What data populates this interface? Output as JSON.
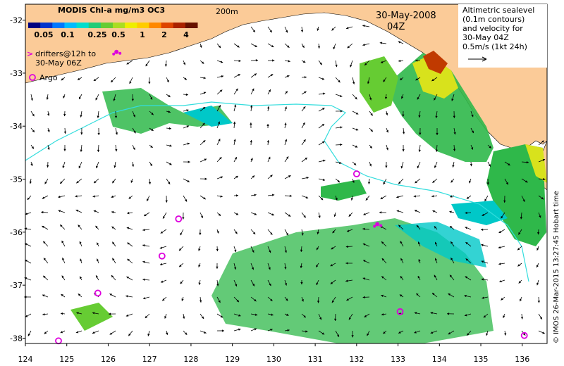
{
  "colorbar": {
    "title": "MODIS Chl-a mg/m3 OC3",
    "labels": [
      "0.05",
      "0.1",
      "0.25",
      "0.5",
      "1",
      "2",
      "4"
    ],
    "colors": [
      "#000080",
      "#0033cc",
      "#0077ff",
      "#00bbff",
      "#00ddcc",
      "#22cc77",
      "#66cc33",
      "#aadd22",
      "#eeee00",
      "#ffcc00",
      "#ff8800",
      "#dd4400",
      "#aa2200",
      "#661100"
    ]
  },
  "isobath_label": "200m",
  "date": "30-May-2008",
  "time": "04Z",
  "info_lines": [
    "Altimetric sealevel",
    "(0.1m contours)",
    "and velocity for",
    "30-May 04Z",
    "0.5m/s (1kt 24h)"
  ],
  "drifters_legend": [
    "drifters@12h to",
    "30-May 06Z"
  ],
  "drifters_symbol": ">",
  "argo_legend": "Argo",
  "credit": "© IMOS 26-Mar-2015 13:27:45 Hobart time",
  "x_ticks": [
    "124",
    "125",
    "126",
    "127",
    "128",
    "129",
    "130",
    "131",
    "132",
    "133",
    "134",
    "135",
    "136"
  ],
  "y_ticks": [
    "-32",
    "-33",
    "-34",
    "-35",
    "-36",
    "-37",
    "-38"
  ],
  "colors": {
    "land": "#fbcb98",
    "ocean": "#ffffff",
    "chl_low": "#00c8c8",
    "chl_mid": "#2fb84a",
    "chl_high": "#d8e21c",
    "chl_peak": "#c03a00",
    "argo": "#dd00dd",
    "isobath": "#33dddd"
  },
  "argo_floats": [
    {
      "lon": 124.8,
      "lat": -38.05
    },
    {
      "lon": 125.75,
      "lat": -37.15
    },
    {
      "lon": 127.3,
      "lat": -36.45
    },
    {
      "lon": 127.7,
      "lat": -35.75
    },
    {
      "lon": 132.0,
      "lat": -34.9
    },
    {
      "lon": 133.05,
      "lat": -37.5
    },
    {
      "lon": 136.05,
      "lat": -37.95
    }
  ],
  "drifters": [
    {
      "lon": 126.2,
      "lat": -32.6
    },
    {
      "lon": 132.5,
      "lat": -35.85
    }
  ]
}
